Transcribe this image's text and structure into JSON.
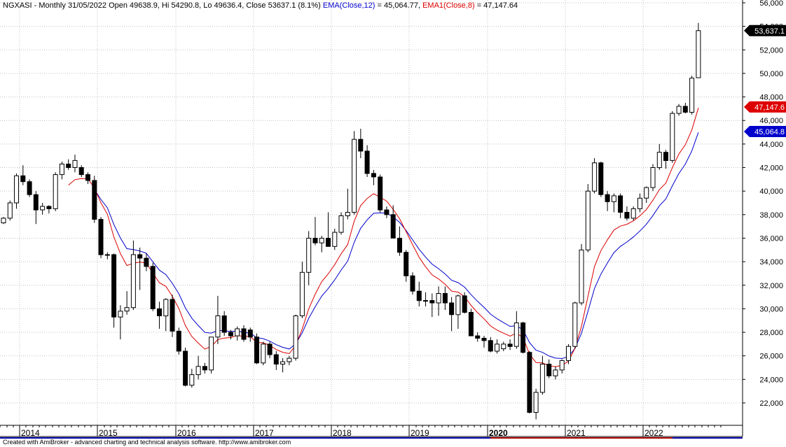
{
  "header": {
    "symbol": "NGXASI",
    "interval": "Monthly",
    "date": "31/05/2022",
    "ohlc_text": "Open 49638.9, Hi 54290.8, Lo 49636.4, Close 53637.1 (8.1%)",
    "ema12_label": "EMA(Close,12)",
    "ema12_value": "= 45,064.77,",
    "ema8_label": "EMA1(Close,8)",
    "ema8_value": "= 47,147.64"
  },
  "footer": {
    "text": "Created with AmiBroker - advanced charting and technical analysis software. http://www.amibroker.com"
  },
  "colors": {
    "ema12": "#0000cc",
    "ema8": "#dd0000",
    "up_candle_fill": "#ffffff",
    "down_candle_fill": "#000000",
    "grid": "#c0c0c0",
    "badge_last": "#000000",
    "badge_ema8": "#dd0000",
    "badge_ema12": "#0000cc"
  },
  "badges": {
    "last": "53,637.1",
    "ema8": "47,147.6",
    "ema12": "45,064.8"
  },
  "chart_data": {
    "type": "candlestick",
    "title": "NGXASI - Monthly",
    "xlabel": "",
    "ylabel": "",
    "ylim": [
      20000,
      56000
    ],
    "y_ticks": [
      {
        "value": 22000,
        "label": "22,000"
      },
      {
        "value": 24000,
        "label": "24,000"
      },
      {
        "value": 26000,
        "label": "26,000"
      },
      {
        "value": 28000,
        "label": "28,000"
      },
      {
        "value": 30000,
        "label": "30,000"
      },
      {
        "value": 32000,
        "label": "32,000"
      },
      {
        "value": 34000,
        "label": "34,000"
      },
      {
        "value": 36000,
        "label": "36,000"
      },
      {
        "value": 38000,
        "label": "38,000"
      },
      {
        "value": 40000,
        "label": "40,000"
      },
      {
        "value": 42000,
        "label": "42,000"
      },
      {
        "value": 44000,
        "label": "44,000"
      },
      {
        "value": 46000,
        "label": "46,000"
      },
      {
        "value": 48000,
        "label": "48,000"
      },
      {
        "value": 50000,
        "label": "50,000"
      },
      {
        "value": 52000,
        "label": "52,000"
      },
      {
        "value": 54000,
        "label": "54,000"
      },
      {
        "value": 56000,
        "label": "56,000"
      }
    ],
    "x_labels": [
      {
        "label": "2014",
        "month_index": 3,
        "bold": false
      },
      {
        "label": "2015",
        "month_index": 15,
        "bold": false
      },
      {
        "label": "2016",
        "month_index": 27,
        "bold": false
      },
      {
        "label": "2017",
        "month_index": 39,
        "bold": false
      },
      {
        "label": "2018",
        "month_index": 51,
        "bold": false
      },
      {
        "label": "2019",
        "month_index": 63,
        "bold": false
      },
      {
        "label": "2020",
        "month_index": 75,
        "bold": true
      },
      {
        "label": "2021",
        "month_index": 87,
        "bold": false
      },
      {
        "label": "2022",
        "month_index": 99,
        "bold": false
      }
    ],
    "candles": [
      {
        "o": 37300,
        "h": 37800,
        "l": 37200,
        "c": 37700
      },
      {
        "o": 37700,
        "h": 39200,
        "l": 37500,
        "c": 39000
      },
      {
        "o": 39000,
        "h": 41500,
        "l": 38500,
        "c": 41300
      },
      {
        "o": 41300,
        "h": 42200,
        "l": 40500,
        "c": 40800
      },
      {
        "o": 40800,
        "h": 41000,
        "l": 39500,
        "c": 39700
      },
      {
        "o": 39700,
        "h": 40000,
        "l": 37200,
        "c": 38400
      },
      {
        "o": 38400,
        "h": 39000,
        "l": 38000,
        "c": 38700
      },
      {
        "o": 38700,
        "h": 38800,
        "l": 38100,
        "c": 38500
      },
      {
        "o": 38500,
        "h": 41600,
        "l": 38300,
        "c": 41400
      },
      {
        "o": 41400,
        "h": 42500,
        "l": 41000,
        "c": 42300
      },
      {
        "o": 42300,
        "h": 42700,
        "l": 41800,
        "c": 42000
      },
      {
        "o": 42000,
        "h": 43100,
        "l": 41600,
        "c": 42600
      },
      {
        "o": 42000,
        "h": 42200,
        "l": 41200,
        "c": 41400
      },
      {
        "o": 41400,
        "h": 41600,
        "l": 40600,
        "c": 40900
      },
      {
        "o": 40900,
        "h": 41300,
        "l": 37300,
        "c": 37600
      },
      {
        "o": 37600,
        "h": 37800,
        "l": 34300,
        "c": 34600
      },
      {
        "o": 34600,
        "h": 34800,
        "l": 34200,
        "c": 34600
      },
      {
        "o": 34600,
        "h": 34700,
        "l": 28400,
        "c": 29300
      },
      {
        "o": 29300,
        "h": 30300,
        "l": 27400,
        "c": 29800
      },
      {
        "o": 29800,
        "h": 31500,
        "l": 29500,
        "c": 30100
      },
      {
        "o": 30100,
        "h": 35800,
        "l": 29900,
        "c": 34600
      },
      {
        "o": 34600,
        "h": 35200,
        "l": 31600,
        "c": 34300
      },
      {
        "o": 34300,
        "h": 34700,
        "l": 33200,
        "c": 33600
      },
      {
        "o": 33600,
        "h": 33900,
        "l": 29800,
        "c": 30000
      },
      {
        "o": 30000,
        "h": 30600,
        "l": 28300,
        "c": 29400
      },
      {
        "o": 29400,
        "h": 30900,
        "l": 28100,
        "c": 30800
      },
      {
        "o": 30800,
        "h": 31200,
        "l": 27600,
        "c": 28100
      },
      {
        "o": 28100,
        "h": 28400,
        "l": 26100,
        "c": 26400
      },
      {
        "o": 26400,
        "h": 26700,
        "l": 23400,
        "c": 23500
      },
      {
        "o": 23500,
        "h": 24900,
        "l": 23300,
        "c": 24400
      },
      {
        "o": 24400,
        "h": 26000,
        "l": 24000,
        "c": 25100
      },
      {
        "o": 25100,
        "h": 25400,
        "l": 24500,
        "c": 24800
      },
      {
        "o": 24800,
        "h": 27600,
        "l": 24500,
        "c": 27600
      },
      {
        "o": 27600,
        "h": 31100,
        "l": 27000,
        "c": 29400
      },
      {
        "o": 29400,
        "h": 29800,
        "l": 27700,
        "c": 28000
      },
      {
        "o": 28000,
        "h": 28200,
        "l": 27400,
        "c": 27700
      },
      {
        "o": 27700,
        "h": 28500,
        "l": 27300,
        "c": 28300
      },
      {
        "o": 28300,
        "h": 28600,
        "l": 27200,
        "c": 27400
      },
      {
        "o": 28200,
        "h": 28400,
        "l": 27200,
        "c": 27600
      },
      {
        "o": 27600,
        "h": 27900,
        "l": 25300,
        "c": 25400
      },
      {
        "o": 25400,
        "h": 27200,
        "l": 25200,
        "c": 27000
      },
      {
        "o": 27000,
        "h": 27200,
        "l": 25800,
        "c": 26100
      },
      {
        "o": 26100,
        "h": 26400,
        "l": 24800,
        "c": 25300
      },
      {
        "o": 25300,
        "h": 25800,
        "l": 24600,
        "c": 25500
      },
      {
        "o": 25500,
        "h": 26000,
        "l": 25200,
        "c": 25800
      },
      {
        "o": 25800,
        "h": 29500,
        "l": 25600,
        "c": 29400
      },
      {
        "o": 29400,
        "h": 34000,
        "l": 29200,
        "c": 33100
      },
      {
        "o": 33100,
        "h": 36600,
        "l": 32000,
        "c": 36000
      },
      {
        "o": 36000,
        "h": 37800,
        "l": 35400,
        "c": 35600
      },
      {
        "o": 35600,
        "h": 36200,
        "l": 34800,
        "c": 36000
      },
      {
        "o": 36000,
        "h": 38200,
        "l": 35300,
        "c": 35300
      },
      {
        "o": 35300,
        "h": 36800,
        "l": 35000,
        "c": 36500
      },
      {
        "o": 36500,
        "h": 38200,
        "l": 36300,
        "c": 37900
      },
      {
        "o": 37900,
        "h": 40200,
        "l": 37600,
        "c": 38200
      },
      {
        "o": 38200,
        "h": 45100,
        "l": 38000,
        "c": 44400
      },
      {
        "o": 44400,
        "h": 45300,
        "l": 42800,
        "c": 43400
      },
      {
        "o": 43400,
        "h": 43900,
        "l": 41200,
        "c": 41500
      },
      {
        "o": 41500,
        "h": 41800,
        "l": 40500,
        "c": 41200
      },
      {
        "o": 41200,
        "h": 41400,
        "l": 38200,
        "c": 38400
      },
      {
        "o": 38400,
        "h": 38700,
        "l": 37700,
        "c": 38000
      },
      {
        "o": 38000,
        "h": 38800,
        "l": 36000,
        "c": 36000
      },
      {
        "o": 36000,
        "h": 37000,
        "l": 34500,
        "c": 34800
      },
      {
        "o": 34800,
        "h": 35000,
        "l": 32300,
        "c": 32800
      },
      {
        "o": 32800,
        "h": 33100,
        "l": 31200,
        "c": 31500
      },
      {
        "o": 31500,
        "h": 32300,
        "l": 30200,
        "c": 30700
      },
      {
        "o": 30700,
        "h": 31400,
        "l": 30200,
        "c": 30700
      },
      {
        "o": 30700,
        "h": 31300,
        "l": 29300,
        "c": 30500
      },
      {
        "o": 30500,
        "h": 31900,
        "l": 29400,
        "c": 31300
      },
      {
        "o": 31300,
        "h": 31900,
        "l": 29900,
        "c": 30500
      },
      {
        "o": 30500,
        "h": 31000,
        "l": 28100,
        "c": 29500
      },
      {
        "o": 29500,
        "h": 31200,
        "l": 28300,
        "c": 31100
      },
      {
        "o": 31100,
        "h": 31400,
        "l": 29600,
        "c": 29700
      },
      {
        "o": 29700,
        "h": 30000,
        "l": 27700,
        "c": 27700
      },
      {
        "o": 27700,
        "h": 28000,
        "l": 27200,
        "c": 27500
      },
      {
        "o": 27500,
        "h": 27700,
        "l": 26700,
        "c": 27300
      },
      {
        "o": 27300,
        "h": 27600,
        "l": 26300,
        "c": 26400
      },
      {
        "o": 26400,
        "h": 27400,
        "l": 26200,
        "c": 27000
      },
      {
        "o": 26600,
        "h": 27200,
        "l": 26400,
        "c": 27000
      },
      {
        "o": 27000,
        "h": 27400,
        "l": 26500,
        "c": 26800
      },
      {
        "o": 26800,
        "h": 29800,
        "l": 26600,
        "c": 28800
      },
      {
        "o": 28800,
        "h": 28900,
        "l": 26200,
        "c": 26300
      },
      {
        "o": 26300,
        "h": 26400,
        "l": 21100,
        "c": 21200
      },
      {
        "o": 21200,
        "h": 23200,
        "l": 20600,
        "c": 22900
      },
      {
        "o": 22900,
        "h": 26000,
        "l": 22700,
        "c": 25300
      },
      {
        "o": 25300,
        "h": 25700,
        "l": 24100,
        "c": 24300
      },
      {
        "o": 24300,
        "h": 25100,
        "l": 24000,
        "c": 24800
      },
      {
        "o": 24800,
        "h": 25700,
        "l": 24500,
        "c": 25600
      },
      {
        "o": 25600,
        "h": 27000,
        "l": 25300,
        "c": 26800
      },
      {
        "o": 26800,
        "h": 30600,
        "l": 26600,
        "c": 30500
      },
      {
        "o": 30500,
        "h": 35500,
        "l": 30300,
        "c": 35000
      },
      {
        "o": 35000,
        "h": 40600,
        "l": 34800,
        "c": 40000
      },
      {
        "o": 40000,
        "h": 42800,
        "l": 39800,
        "c": 42400
      },
      {
        "o": 42400,
        "h": 42500,
        "l": 39500,
        "c": 39700
      },
      {
        "o": 39700,
        "h": 40000,
        "l": 38300,
        "c": 39100
      },
      {
        "o": 39100,
        "h": 39800,
        "l": 38200,
        "c": 39600
      },
      {
        "o": 39600,
        "h": 39800,
        "l": 37700,
        "c": 38200
      },
      {
        "o": 38200,
        "h": 38700,
        "l": 37500,
        "c": 37700
      },
      {
        "o": 37700,
        "h": 38700,
        "l": 37500,
        "c": 38500
      },
      {
        "o": 38500,
        "h": 39800,
        "l": 38200,
        "c": 39400
      },
      {
        "o": 39400,
        "h": 40400,
        "l": 39000,
        "c": 40300
      },
      {
        "o": 40300,
        "h": 42300,
        "l": 40000,
        "c": 42000
      },
      {
        "o": 42000,
        "h": 44000,
        "l": 41800,
        "c": 43300
      },
      {
        "o": 43300,
        "h": 43500,
        "l": 41900,
        "c": 42600
      },
      {
        "o": 42600,
        "h": 46800,
        "l": 42400,
        "c": 46600
      },
      {
        "o": 46600,
        "h": 47400,
        "l": 46400,
        "c": 47200
      },
      {
        "o": 47200,
        "h": 47500,
        "l": 46600,
        "c": 46700
      },
      {
        "o": 46700,
        "h": 49800,
        "l": 46500,
        "c": 49600
      },
      {
        "o": 49639,
        "h": 54291,
        "l": 49636,
        "c": 53637
      }
    ],
    "ema8": [],
    "ema12": [],
    "ema8_start": 10,
    "ema12_start": 14
  }
}
